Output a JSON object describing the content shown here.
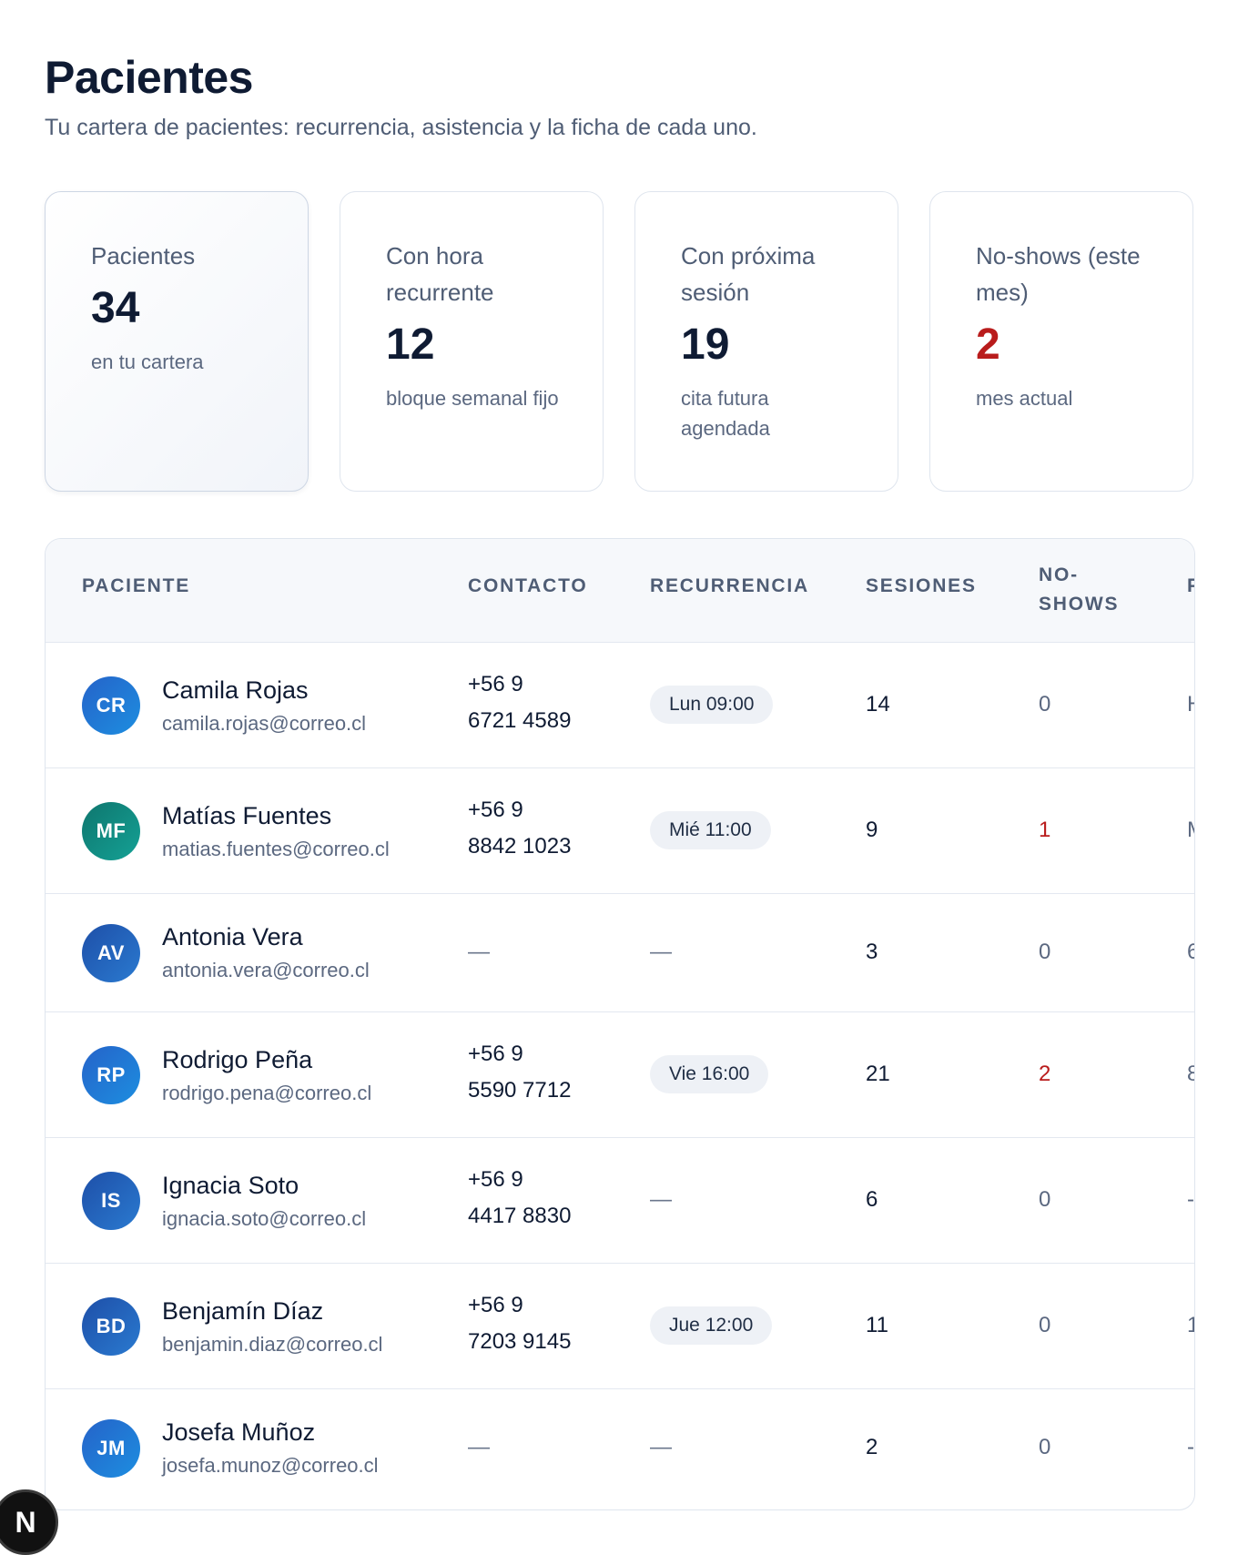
{
  "header": {
    "title": "Pacientes",
    "subtitle": "Tu cartera de pacientes: recurrencia, asistencia y la ficha de cada uno."
  },
  "stats": [
    {
      "label": "Pacientes",
      "value": "34",
      "note": "en tu cartera"
    },
    {
      "label": "Con hora recurrente",
      "value": "12",
      "note": "bloque semanal fijo"
    },
    {
      "label": "Con próxima sesión",
      "value": "19",
      "note": "cita futura agendada"
    },
    {
      "label": "No-shows (este mes)",
      "value": "2",
      "note": "mes actual"
    }
  ],
  "table": {
    "columns": [
      "PACIENTE",
      "CONTACTO",
      "RECURRENCIA",
      "SESIONES",
      "NO-SHOWS",
      "P"
    ],
    "rows": [
      {
        "initials": "CR",
        "name": "Camila Rojas",
        "email": "camila.rojas@correo.cl",
        "phone_1": "+56 9",
        "phone_2": "6721 4589",
        "recurrence": "Lun 09:00",
        "sessions": "14",
        "noshows": "0",
        "extra": "H"
      },
      {
        "initials": "MF",
        "name": "Matías Fuentes",
        "email": "matias.fuentes@correo.cl",
        "phone_1": "+56 9",
        "phone_2": "8842 1023",
        "recurrence": "Mié 11:00",
        "sessions": "9",
        "noshows": "1",
        "extra": "M"
      },
      {
        "initials": "AV",
        "name": "Antonia Vera",
        "email": "antonia.vera@correo.cl",
        "phone_1": "",
        "phone_2": "—",
        "recurrence": "—",
        "sessions": "3",
        "noshows": "0",
        "extra": "6"
      },
      {
        "initials": "RP",
        "name": "Rodrigo Peña",
        "email": "rodrigo.pena@correo.cl",
        "phone_1": "+56 9",
        "phone_2": "5590 7712",
        "recurrence": "Vie 16:00",
        "sessions": "21",
        "noshows": "2",
        "extra": "8"
      },
      {
        "initials": "IS",
        "name": "Ignacia Soto",
        "email": "ignacia.soto@correo.cl",
        "phone_1": "+56 9",
        "phone_2": "4417 8830",
        "recurrence": "—",
        "sessions": "6",
        "noshows": "0",
        "extra": "-"
      },
      {
        "initials": "BD",
        "name": "Benjamín Díaz",
        "email": "benjamin.diaz@correo.cl",
        "phone_1": "+56 9",
        "phone_2": "7203 9145",
        "recurrence": "Jue 12:00",
        "sessions": "11",
        "noshows": "0",
        "extra": "1"
      },
      {
        "initials": "JM",
        "name": "Josefa Muñoz",
        "email": "josefa.munoz@correo.cl",
        "phone_1": "",
        "phone_2": "—",
        "recurrence": "—",
        "sessions": "2",
        "noshows": "0",
        "extra": "-"
      }
    ]
  },
  "badge": {
    "label": "N"
  },
  "colors": {
    "danger": "#b91c1c",
    "pill_bg": "#eef1f6",
    "header_bg": "#f6f8fb"
  }
}
